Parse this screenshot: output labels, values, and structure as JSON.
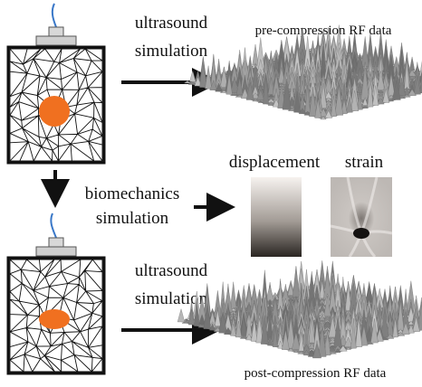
{
  "labels": {
    "ultrasound_top_1": "ultrasound",
    "ultrasound_top_2": "simulation",
    "pre_rf": "pre-compression RF data",
    "displacement": "displacement",
    "strain": "strain",
    "biomech_1": "biomechanics",
    "biomech_2": "simulation",
    "ultrasound_bot_1": "ultrasound",
    "ultrasound_bot_2": "simulation",
    "post_rf": "post-compression RF data"
  },
  "colors": {
    "tumor": "#f07020",
    "mesh": "#111111",
    "frame": "#111111",
    "transducer": "#d8d8d8",
    "cable": "#3a78c8",
    "rf_surface": "#9a9a9a"
  }
}
